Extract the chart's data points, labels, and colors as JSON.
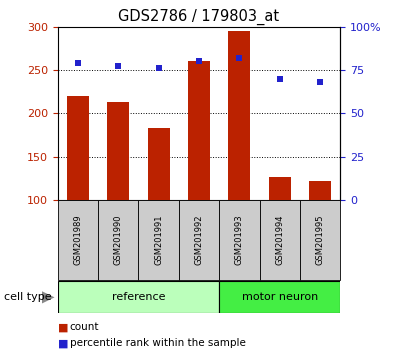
{
  "title": "GDS2786 / 179803_at",
  "categories": [
    "GSM201989",
    "GSM201990",
    "GSM201991",
    "GSM201992",
    "GSM201993",
    "GSM201994",
    "GSM201995"
  ],
  "count_values": [
    220,
    213,
    183,
    260,
    295,
    127,
    122
  ],
  "percentile_values": [
    79,
    77,
    76,
    80,
    82,
    70,
    68
  ],
  "bar_color": "#bb2200",
  "dot_color": "#2222cc",
  "left_ylim": [
    100,
    300
  ],
  "right_ylim": [
    0,
    100
  ],
  "left_yticks": [
    100,
    150,
    200,
    250,
    300
  ],
  "right_yticks": [
    0,
    25,
    50,
    75,
    100
  ],
  "right_yticklabels": [
    "0",
    "25",
    "50",
    "75",
    "100%"
  ],
  "grid_values": [
    150,
    200,
    250
  ],
  "reference_count": 4,
  "motor_neuron_count": 3,
  "ref_color": "#bbffbb",
  "motor_color": "#44ee44",
  "label_bg_color": "#cccccc",
  "legend_count_label": "count",
  "legend_pct_label": "percentile rank within the sample",
  "cell_type_label": "cell type"
}
